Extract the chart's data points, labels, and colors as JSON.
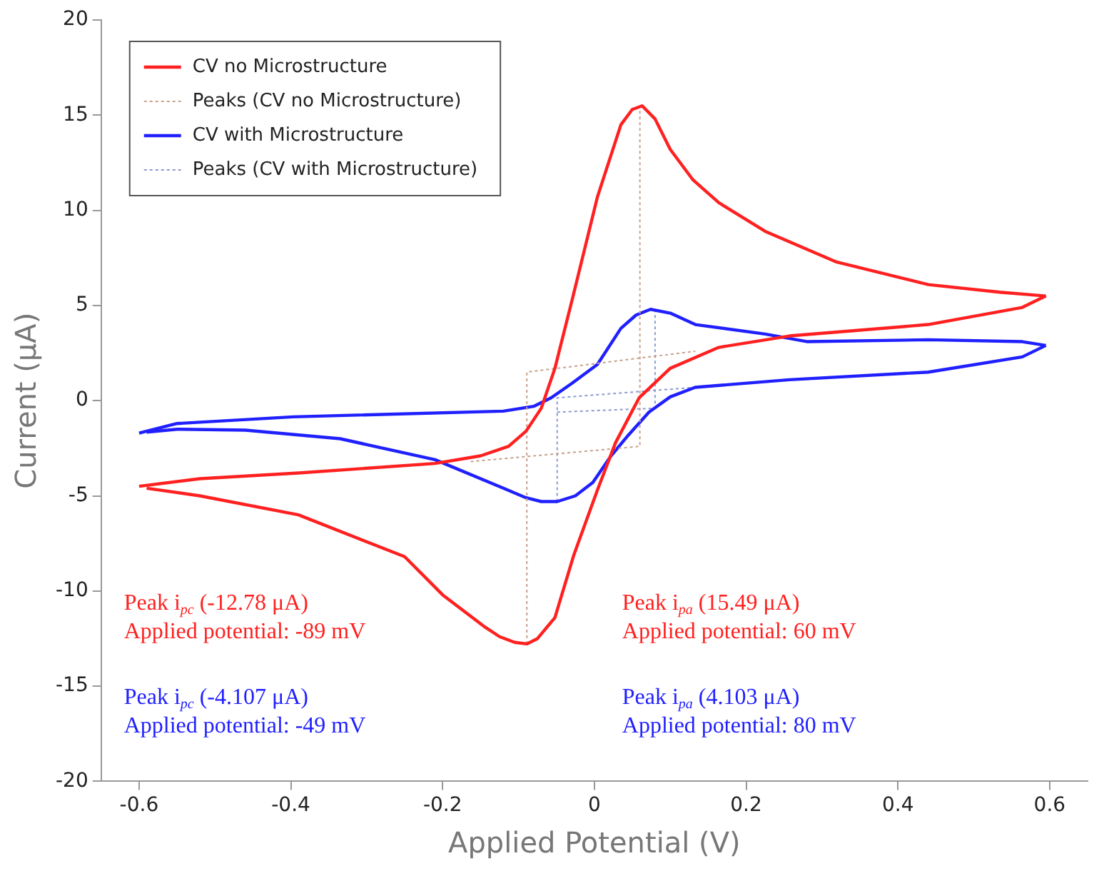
{
  "chart_data": {
    "type": "line",
    "xlabel": "Applied Potential (V)",
    "ylabel": "Current (μA)",
    "xlim": [
      -0.65,
      0.65
    ],
    "xticks": [
      -0.6,
      -0.4,
      -0.2,
      0,
      0.2,
      0.4,
      0.6
    ],
    "ylim": [
      -20,
      20
    ],
    "yticks": [
      -20,
      -15,
      -10,
      -5,
      0,
      5,
      10,
      15,
      20
    ],
    "grid": false,
    "legend": "top left",
    "marker": "none",
    "series": [
      {
        "name": "CV no Microstructure",
        "color": "#ff2020",
        "line_style": "solid",
        "x": [
          -0.6,
          -0.52,
          -0.39,
          -0.21,
          -0.15,
          -0.113,
          -0.09,
          -0.07,
          -0.052,
          -0.028,
          0.004,
          0.035,
          0.05,
          0.063,
          0.08,
          0.1,
          0.13,
          0.164,
          0.225,
          0.318,
          0.44,
          0.534,
          0.595
        ],
        "values": [
          -4.5,
          -4.1,
          -3.8,
          -3.3,
          -2.9,
          -2.4,
          -1.6,
          -0.4,
          1.7,
          5.5,
          10.7,
          14.5,
          15.3,
          15.49,
          14.8,
          13.2,
          11.6,
          10.4,
          8.9,
          7.3,
          6.1,
          5.7,
          5.5
        ]
      },
      {
        "color": "#ff2020",
        "line_style": "solid",
        "x": [
          0.595,
          0.564,
          0.44,
          0.257,
          0.164,
          0.1,
          0.059,
          0.028,
          0.004,
          -0.027,
          -0.052,
          -0.075,
          -0.089,
          -0.105,
          -0.125,
          -0.144,
          -0.2,
          -0.25,
          -0.39,
          -0.52,
          -0.59
        ],
        "values": [
          5.5,
          4.9,
          4.0,
          3.4,
          2.8,
          1.7,
          0.15,
          -2.2,
          -4.7,
          -8.1,
          -11.4,
          -12.5,
          -12.78,
          -12.7,
          -12.4,
          -11.9,
          -10.2,
          -8.2,
          -6.0,
          -5.0,
          -4.6
        ]
      },
      {
        "name": "Peaks (CV no Microstructure)",
        "color": "#c8a08c",
        "line_style": "dotted",
        "x": [
          -0.163,
          0.06,
          0.06,
          null,
          -0.089,
          -0.089,
          0.133
        ],
        "values": [
          -3.2,
          -2.4,
          15.49,
          null,
          -12.78,
          1.5,
          2.6
        ]
      },
      {
        "name": "CV with Microstructure",
        "color": "#2020ff",
        "line_style": "solid",
        "x": [
          -0.6,
          -0.55,
          -0.397,
          -0.12,
          -0.08,
          -0.057,
          -0.03,
          0.004,
          0.035,
          0.055,
          0.074,
          0.1,
          0.133,
          0.225,
          0.281,
          0.44,
          0.564,
          0.595
        ],
        "values": [
          -1.7,
          -1.2,
          -0.85,
          -0.55,
          -0.3,
          0.15,
          0.9,
          1.9,
          3.8,
          4.5,
          4.8,
          4.6,
          4.0,
          3.5,
          3.1,
          3.2,
          3.1,
          2.9
        ]
      },
      {
        "color": "#2020ff",
        "line_style": "solid",
        "x": [
          0.595,
          0.564,
          0.44,
          0.257,
          0.133,
          0.1,
          0.072,
          0.045,
          0.022,
          -0.002,
          -0.025,
          -0.049,
          -0.07,
          -0.09,
          -0.12,
          -0.21,
          -0.335,
          -0.46,
          -0.55,
          -0.59
        ],
        "values": [
          2.9,
          2.3,
          1.5,
          1.1,
          0.7,
          0.2,
          -0.6,
          -1.8,
          -2.9,
          -4.3,
          -5.0,
          -5.3,
          -5.3,
          -5.1,
          -4.6,
          -3.1,
          -2.0,
          -1.55,
          -1.5,
          -1.65
        ]
      },
      {
        "name": "Peaks (CV with Microstructure)",
        "color": "#8c9ad0",
        "line_style": "dotted",
        "x": [
          -0.049,
          0.08,
          0.08,
          null,
          -0.049,
          -0.049,
          0.133
        ],
        "values": [
          -0.6,
          -0.4,
          4.8,
          null,
          -5.3,
          0.15,
          0.7
        ]
      }
    ],
    "annotations": [
      "Peak i$_{pc}$ (-12.78 μA)\nApplied potential: -89 mV",
      "Peak i$_{pa}$ (15.49 μA)\nApplied potential: 60 mV",
      "Peak i$_{pc}$ (-4.107 μA)\nApplied potential: -49 mV",
      "Peak i$_{pa}$ (4.103 μA)\nApplied potential: 80 mV"
    ]
  }
}
